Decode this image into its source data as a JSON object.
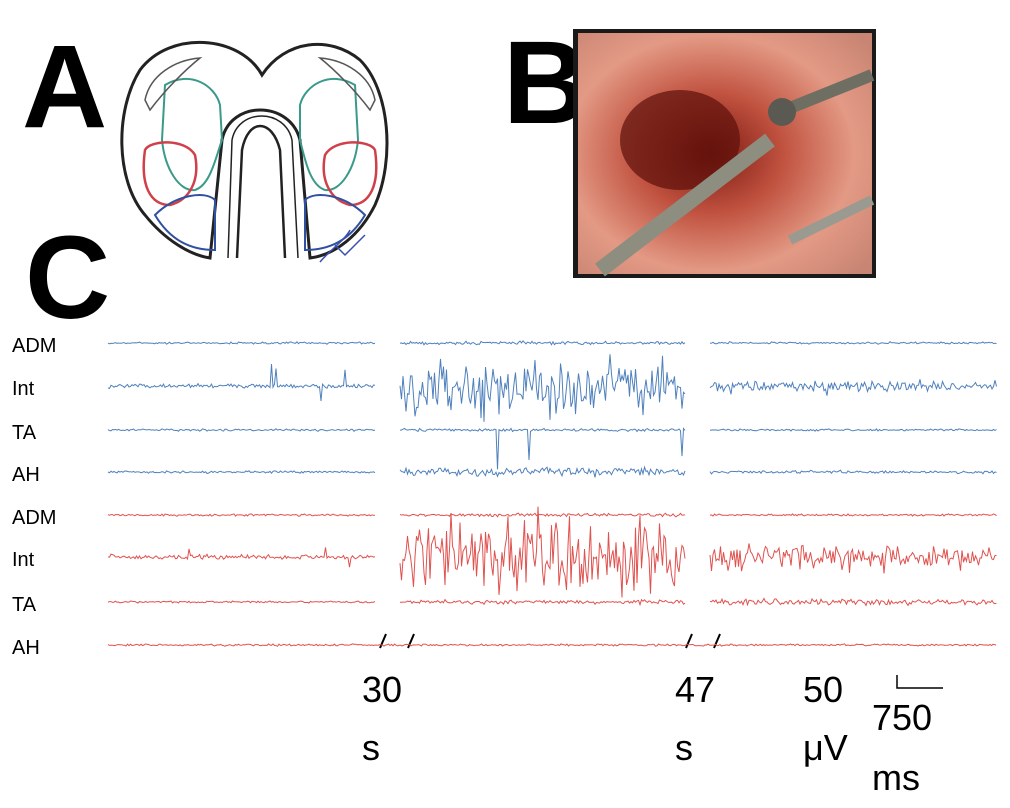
{
  "panels": {
    "a": "A",
    "b": "B",
    "c": "C"
  },
  "traces": [
    {
      "color": "#4f81bd",
      "channels": [
        "ADM",
        "Int",
        "TA",
        "AH"
      ]
    },
    {
      "color": "#e0524f",
      "channels": [
        "ADM",
        "Int",
        "TA",
        "AH"
      ]
    }
  ],
  "breaks": [
    {
      "number": "30",
      "unit": "s"
    },
    {
      "number": "47",
      "unit": "s"
    }
  ],
  "scale_bar": {
    "amplitude": "50",
    "amplitude_unit": "μV",
    "duration": "750",
    "duration_unit": "ms"
  }
}
